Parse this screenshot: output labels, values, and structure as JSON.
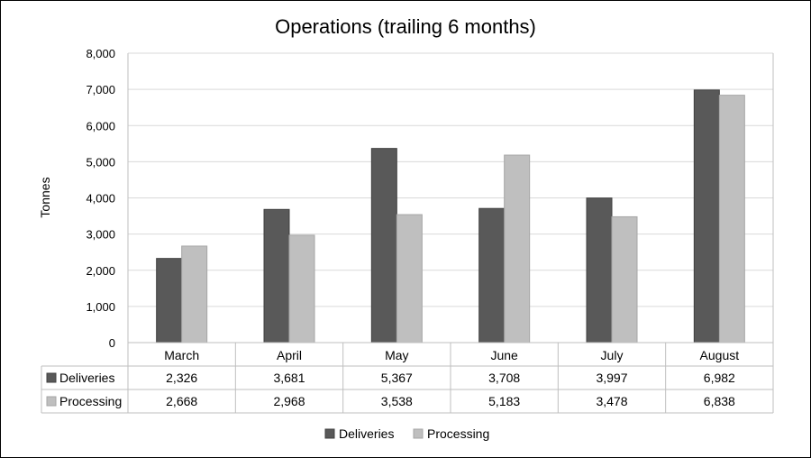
{
  "chart_data": {
    "type": "bar",
    "title": "Operations (trailing 6 months)",
    "ylabel": "Tonnes",
    "xlabel": "",
    "ylim": [
      0,
      8000
    ],
    "yticks": [
      0,
      1000,
      2000,
      3000,
      4000,
      5000,
      6000,
      7000,
      8000
    ],
    "ytick_labels": [
      "0",
      "1,000",
      "2,000",
      "3,000",
      "4,000",
      "5,000",
      "6,000",
      "7,000",
      "8,000"
    ],
    "grid": true,
    "legend_position": "bottom",
    "data_table": true,
    "categories": [
      "March",
      "April",
      "May",
      "June",
      "July",
      "August"
    ],
    "series": [
      {
        "name": "Deliveries",
        "color": "#595959",
        "values": [
          2326,
          3681,
          5367,
          3708,
          3997,
          6982
        ],
        "value_labels": [
          "2,326",
          "3,681",
          "5,367",
          "3,708",
          "3,997",
          "6,982"
        ]
      },
      {
        "name": "Processing",
        "color": "#bfbfbf",
        "values": [
          2668,
          2968,
          3538,
          5183,
          3478,
          6838
        ],
        "value_labels": [
          "2,668",
          "2,968",
          "3,538",
          "5,183",
          "3,478",
          "6,838"
        ]
      }
    ]
  }
}
